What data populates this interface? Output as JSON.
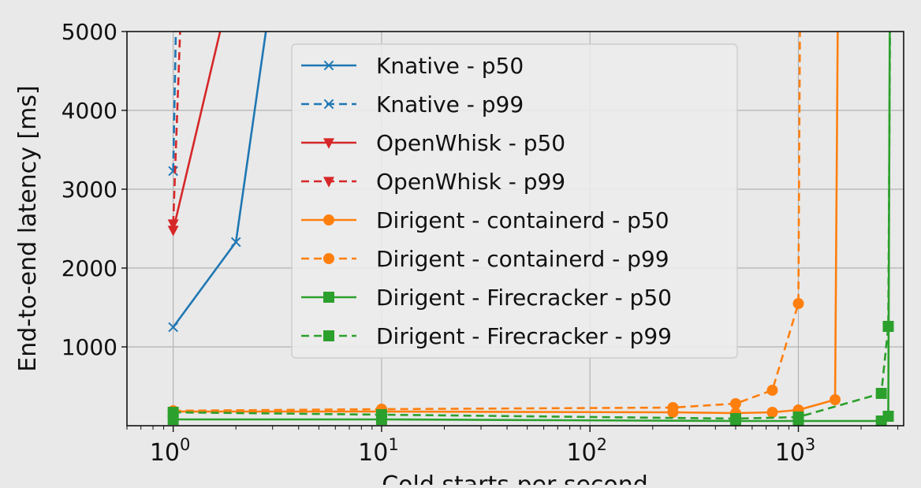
{
  "chart_data": {
    "type": "line",
    "title": "",
    "xlabel": "Cold starts per second",
    "ylabel": "End-to-end latency [ms]",
    "xscale": "log",
    "xlim": [
      0.6,
      3200
    ],
    "ylim": [
      0,
      5000
    ],
    "grid": true,
    "legend_position": "top-center",
    "x_ticks": [
      {
        "value": 1,
        "base": "10",
        "exp": "0"
      },
      {
        "value": 10,
        "base": "10",
        "exp": "1"
      },
      {
        "value": 100,
        "base": "10",
        "exp": "2"
      },
      {
        "value": 1000,
        "base": "10",
        "exp": "3"
      }
    ],
    "y_ticks": [
      {
        "value": 1000,
        "label": "1000"
      },
      {
        "value": 2000,
        "label": "2000"
      },
      {
        "value": 3000,
        "label": "3000"
      },
      {
        "value": 4000,
        "label": "4000"
      },
      {
        "value": 5000,
        "label": "5000"
      }
    ],
    "series": [
      {
        "name": "Knative - p50",
        "color": "#1f77b4",
        "dashed": false,
        "marker": "x",
        "points": [
          [
            1,
            1250
          ],
          [
            2,
            2330
          ],
          [
            3,
            5600
          ]
        ]
      },
      {
        "name": "Knative - p99",
        "color": "#1f77b4",
        "dashed": true,
        "marker": "x",
        "points": [
          [
            1,
            3230
          ],
          [
            1.04,
            5600
          ]
        ]
      },
      {
        "name": "OpenWhisk - p50",
        "color": "#d62728",
        "dashed": false,
        "marker": "triangle-down",
        "points": [
          [
            1,
            2480
          ],
          [
            1.9,
            5600
          ]
        ]
      },
      {
        "name": "OpenWhisk - p99",
        "color": "#d62728",
        "dashed": true,
        "marker": "triangle-down",
        "points": [
          [
            1,
            2560
          ],
          [
            1.1,
            5600
          ]
        ]
      },
      {
        "name": "Dirigent - containerd - p50",
        "color": "#ff7f0e",
        "dashed": false,
        "marker": "circle",
        "points": [
          [
            1,
            180
          ],
          [
            10,
            180
          ],
          [
            250,
            170
          ],
          [
            500,
            160
          ],
          [
            750,
            170
          ],
          [
            1000,
            200
          ],
          [
            1500,
            330
          ],
          [
            1550,
            5600
          ]
        ]
      },
      {
        "name": "Dirigent - containerd - p99",
        "color": "#ff7f0e",
        "dashed": true,
        "marker": "circle",
        "points": [
          [
            1,
            190
          ],
          [
            10,
            210
          ],
          [
            250,
            230
          ],
          [
            500,
            280
          ],
          [
            750,
            450
          ],
          [
            1000,
            1550
          ],
          [
            1020,
            5600
          ]
        ]
      },
      {
        "name": "Dirigent - Firecracker - p50",
        "color": "#2ca02c",
        "dashed": false,
        "marker": "square",
        "points": [
          [
            1,
            80
          ],
          [
            10,
            80
          ],
          [
            500,
            60
          ],
          [
            1000,
            60
          ],
          [
            2500,
            60
          ],
          [
            2700,
            120
          ],
          [
            2750,
            5600
          ]
        ]
      },
      {
        "name": "Dirigent - Firecracker - p99",
        "color": "#2ca02c",
        "dashed": true,
        "marker": "square",
        "points": [
          [
            1,
            170
          ],
          [
            10,
            140
          ],
          [
            500,
            90
          ],
          [
            1000,
            110
          ],
          [
            2500,
            410
          ],
          [
            2700,
            1260
          ],
          [
            2760,
            5600
          ]
        ]
      }
    ]
  }
}
